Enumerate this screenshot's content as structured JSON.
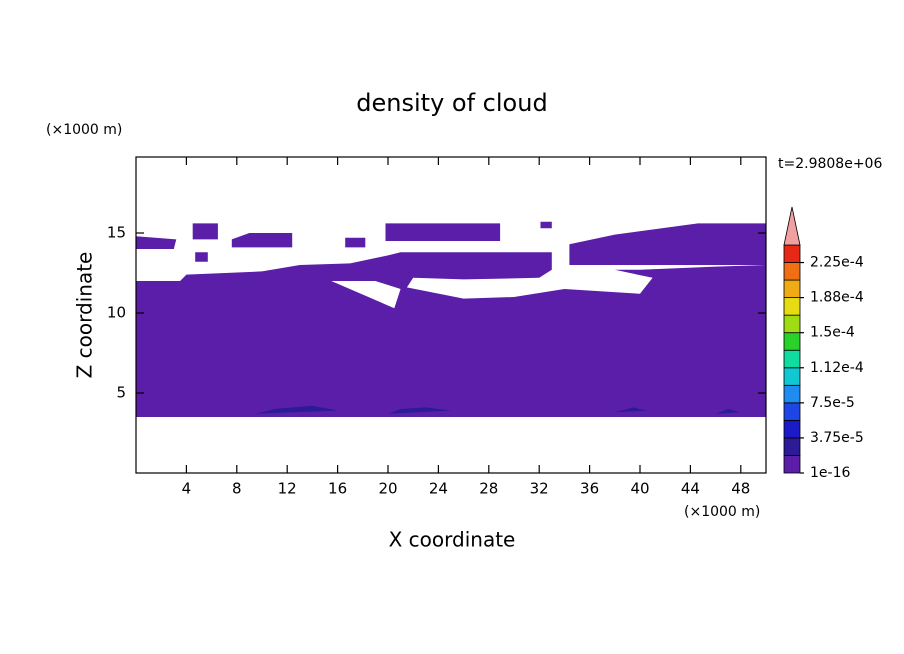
{
  "chart_data": {
    "type": "contour",
    "title": "density of cloud",
    "x_label": "X coordinate",
    "y_label": "Z coordinate",
    "x_unit": "(×1000 m)",
    "y_unit": "(×1000 m)",
    "annotation": "t=2.9808e+06",
    "xlim": [
      0,
      50
    ],
    "ylim": [
      0,
      19.75
    ],
    "xticks": [
      4,
      8,
      12,
      16,
      20,
      24,
      28,
      32,
      36,
      40,
      44,
      48
    ],
    "yticks": [
      5,
      10,
      15
    ],
    "clim": [
      1e-16,
      0.00024375
    ],
    "colorbar_ticks": [
      1e-16,
      {
        "value": 3.75e-05,
        "label": "3.75e-5"
      },
      {
        "value": 7.5e-05,
        "label": "7.5e-5"
      },
      {
        "value": 0.0001125,
        "label": "1.12e-4"
      },
      {
        "value": 0.00015,
        "label": "1.5e-4"
      },
      {
        "value": 0.0001875,
        "label": "1.88e-4"
      },
      {
        "value": 0.000225,
        "label": "2.25e-4"
      }
    ],
    "colors": [
      "#5a1ea8",
      "#2c1a96",
      "#1a1ac8",
      "#1e46e6",
      "#1e8cf0",
      "#10c8d2",
      "#10dca0",
      "#28d228",
      "#a0dc14",
      "#e6dc14",
      "#f0aa14",
      "#f06e14",
      "#e62814"
    ],
    "extend_color": "#f0a0a0",
    "regions": [
      {
        "level": 0,
        "x": [
          [
            0,
            50,
            50,
            46,
            40,
            38,
            33,
            33,
            21,
            20,
            17,
            13,
            10,
            4,
            3.5,
            0
          ],
          [
            21.5,
            26,
            30,
            34,
            40,
            41,
            38,
            33,
            32,
            26,
            22
          ],
          [
            15.5,
            20.5,
            21,
            19
          ],
          [
            0,
            3,
            3.2,
            0
          ],
          [
            4.5,
            6.5,
            6.5,
            4.5
          ],
          [
            7.6,
            12.4,
            12.4,
            9,
            7.6
          ],
          [
            16.6,
            18.2,
            18.2,
            16.6
          ],
          [
            19.8,
            28.9,
            28.9,
            19.8
          ],
          [
            34.4,
            50,
            50,
            44.6,
            38,
            34.4
          ],
          [
            4.7,
            5.7,
            5.7,
            4.7
          ],
          [
            32.1,
            33,
            33,
            32.1
          ]
        ],
        "z": [
          [
            3.5,
            3.5,
            13.0,
            12.9,
            12.7,
            12.7,
            12.7,
            13.8,
            13.8,
            13.6,
            13.1,
            13.0,
            12.6,
            12.4,
            12.0,
            12.0
          ],
          [
            11.6,
            10.9,
            11.0,
            11.5,
            11.2,
            12.2,
            12.7,
            12.7,
            12.2,
            12.1,
            12.2
          ],
          [
            12.0,
            10.3,
            11.5,
            12.0
          ],
          [
            14.0,
            14.0,
            14.6,
            14.8
          ],
          [
            14.6,
            14.6,
            15.6,
            15.6
          ],
          [
            14.1,
            14.1,
            15.0,
            15.0,
            14.6
          ],
          [
            14.1,
            14.1,
            14.7,
            14.7
          ],
          [
            14.5,
            14.5,
            15.6,
            15.6
          ],
          [
            13.0,
            13.0,
            15.6,
            15.6,
            14.9,
            14.3
          ],
          [
            13.2,
            13.2,
            13.8,
            13.8
          ],
          [
            15.3,
            15.3,
            15.7,
            15.7
          ]
        ]
      },
      {
        "level": 1,
        "x": [
          [
            9.5,
            16,
            14,
            11
          ],
          [
            20,
            25,
            23,
            21
          ],
          [
            38,
            40.5,
            39.5
          ],
          [
            46,
            48,
            47
          ]
        ],
        "z": [
          [
            3.7,
            3.9,
            4.2,
            4.0
          ],
          [
            3.7,
            3.9,
            4.1,
            4.0
          ],
          [
            3.8,
            3.9,
            4.1
          ],
          [
            3.7,
            3.8,
            4.0
          ]
        ]
      }
    ]
  }
}
